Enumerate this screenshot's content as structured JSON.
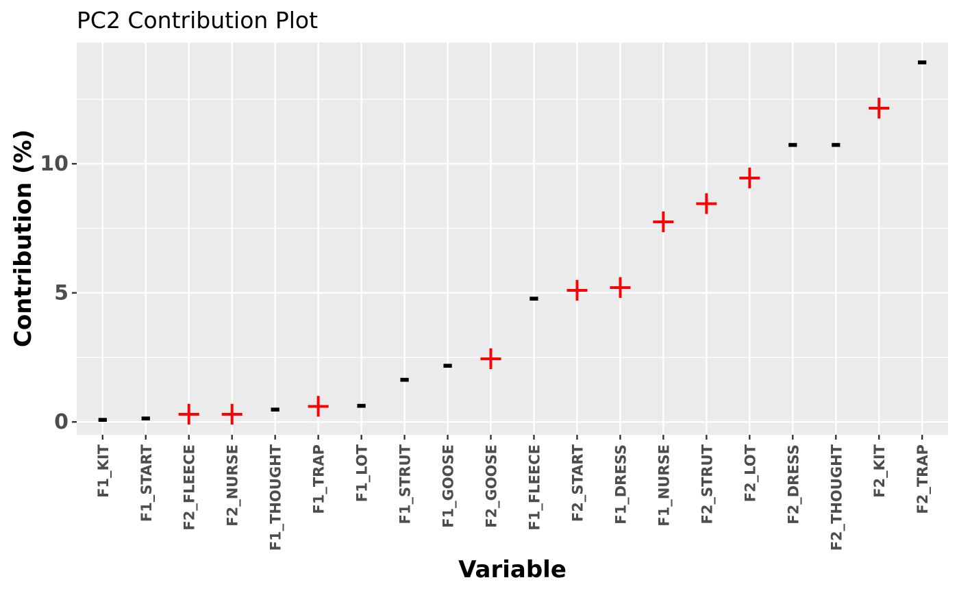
{
  "chart_data": {
    "type": "scatter",
    "title": "PC2 Contribution Plot",
    "xlabel": "Variable",
    "ylabel": "Contribution (%)",
    "categories": [
      "F1_KIT",
      "F1_START",
      "F2_FLEECE",
      "F2_NURSE",
      "F1_THOUGHT",
      "F1_TRAP",
      "F1_LOT",
      "F1_STRUT",
      "F1_GOOSE",
      "F2_GOOSE",
      "F1_FLEECE",
      "F2_START",
      "F1_DRESS",
      "F1_NURSE",
      "F2_STRUT",
      "F2_LOT",
      "F2_DRESS",
      "F2_THOUGHT",
      "F2_KIT",
      "F2_TRAP"
    ],
    "values": [
      0.15,
      0.2,
      0.35,
      0.35,
      0.55,
      0.65,
      0.7,
      1.7,
      2.25,
      2.5,
      4.85,
      5.15,
      5.25,
      7.8,
      8.5,
      9.5,
      10.8,
      10.8,
      12.2,
      14.0
    ],
    "signs": [
      "-",
      "-",
      "+",
      "+",
      "-",
      "+",
      "-",
      "-",
      "-",
      "+",
      "-",
      "+",
      "+",
      "+",
      "+",
      "+",
      "-",
      "-",
      "+",
      "-"
    ],
    "ylim": [
      -0.5,
      14.7
    ],
    "yticks": [
      0,
      5,
      10
    ],
    "grid": true,
    "colors": {
      "+": "#ff0000",
      "-": "#000000",
      "panel": "#ebebeb",
      "grid": "#ffffff"
    }
  }
}
